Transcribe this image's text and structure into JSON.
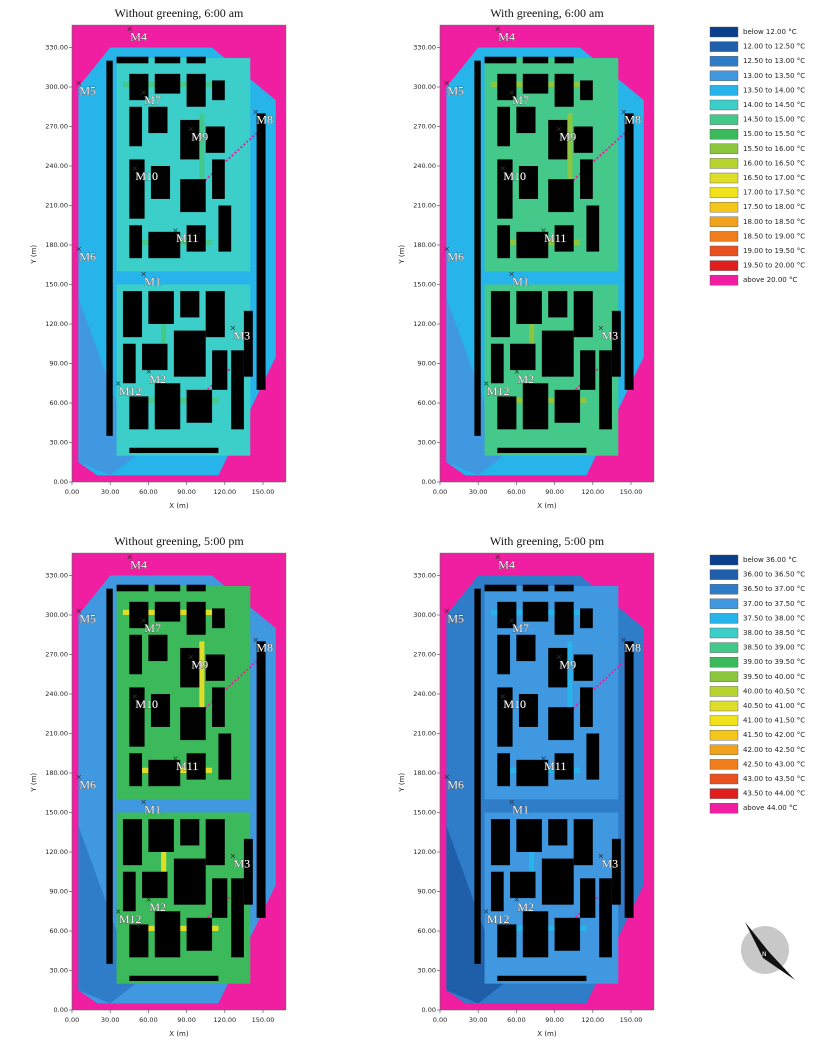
{
  "panels": [
    {
      "title": "Without greening, 6:00 am"
    },
    {
      "title": "With greening, 6:00 am"
    },
    {
      "title": "Without greening, 5:00 pm"
    },
    {
      "title": "With greening, 5:00 pm"
    }
  ],
  "x_label": "X (m)",
  "y_label": "Y (m)",
  "x_ticks": [
    "0.00",
    "30.00",
    "60.00",
    "90.00",
    "120.00",
    "150.00"
  ],
  "y_ticks": [
    "0.00",
    "30.00",
    "60.00",
    "90.00",
    "120.00",
    "150.00",
    "180.00",
    "210.00",
    "240.00",
    "270.00",
    "300.00",
    "330.00"
  ],
  "receptors": [
    "M1",
    "M2",
    "M3",
    "M4",
    "M5",
    "M6",
    "M7",
    "M8",
    "M9",
    "M10",
    "M11",
    "M12"
  ],
  "legend_colors": [
    "#0a3f8c",
    "#1f5ea8",
    "#2f7cc8",
    "#3f98e0",
    "#27b4ea",
    "#3ccfc9",
    "#44c98a",
    "#3cb95a",
    "#8cc63e",
    "#b6d32e",
    "#dede28",
    "#f2e21c",
    "#f5c518",
    "#f2a21a",
    "#ef7d1c",
    "#e8501e",
    "#e01e1e",
    "#f01ea0"
  ],
  "legends": [
    {
      "labels": [
        "below 12.00 °C",
        "12.00 to 12.50 °C",
        "12.50 to 13.00 °C",
        "13.00 to 13.50 °C",
        "13.50 to 14.00 °C",
        "14.00 to 14.50 °C",
        "14.50 to 15.00 °C",
        "15.00 to 15.50 °C",
        "15.50 to 16.00 °C",
        "16.00 to 16.50 °C",
        "16.50 to 17.00 °C",
        "17.00 to 17.50 °C",
        "17.50 to 18.00 °C",
        "18.00 to 18.50 °C",
        "18.50 to 19.00 °C",
        "19.00 to 19.50 °C",
        "19.50 to 20.00 °C",
        "above 20.00 °C"
      ]
    },
    {
      "labels": [
        "below 36.00 °C",
        "36.00 to 36.50 °C",
        "36.50 to 37.00 °C",
        "37.00 to 37.50 °C",
        "37.50 to 38.00 °C",
        "38.00 to 38.50 °C",
        "38.50 to 39.00 °C",
        "39.00 to 39.50 °C",
        "39.50 to 40.00 °C",
        "40.00 to 40.50 °C",
        "40.50 to 41.00 °C",
        "41.00 to 41.50 °C",
        "41.50 to 42.00 °C",
        "42.00 to 42.50 °C",
        "42.50 to 43.00 °C",
        "43.00 to 43.50 °C",
        "43.50 to 44.00 °C",
        "above 44.00 °C"
      ]
    }
  ],
  "north_label": "N"
}
